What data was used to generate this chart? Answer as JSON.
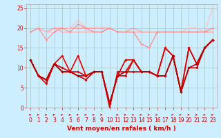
{
  "title": "",
  "xlabel": "Vent moyen/en rafales ( km/h )",
  "bg_color": "#cceeff",
  "grid_color": "#aacccc",
  "ylim": [
    0,
    26
  ],
  "yticks": [
    0,
    5,
    10,
    15,
    20,
    25
  ],
  "series": [
    {
      "data": [
        19,
        20,
        19,
        20,
        19,
        19,
        19,
        19,
        19,
        19,
        20,
        19,
        19,
        19,
        19,
        19,
        19,
        19,
        19,
        19,
        19,
        19,
        19,
        20
      ],
      "color": "#ffaaaa",
      "marker": "D",
      "markersize": 1.5,
      "linewidth": 0.8
    },
    {
      "data": [
        19,
        20,
        19,
        20,
        20,
        20,
        20,
        20,
        20,
        20,
        20,
        19,
        19,
        20,
        19,
        19,
        19,
        19,
        19,
        19,
        19,
        19,
        19,
        19
      ],
      "color": "#ff9999",
      "marker": "D",
      "markersize": 1.5,
      "linewidth": 0.8
    },
    {
      "data": [
        19,
        20,
        19,
        19,
        20,
        20,
        22,
        20,
        19,
        19,
        20,
        19,
        19,
        19,
        16,
        15,
        19,
        19,
        19,
        19,
        20,
        20,
        19,
        25
      ],
      "color": "#ffbbbb",
      "marker": "D",
      "markersize": 1.5,
      "linewidth": 0.8
    },
    {
      "data": [
        19,
        20,
        17,
        19,
        20,
        19,
        21,
        20,
        19,
        19,
        20,
        19,
        19,
        19,
        16,
        15,
        19,
        19,
        19,
        19,
        19,
        19,
        19,
        20
      ],
      "color": "#ff8888",
      "marker": "D",
      "markersize": 1.5,
      "linewidth": 0.8
    },
    {
      "data": [
        12,
        8,
        7,
        11,
        13,
        9,
        13,
        8,
        9,
        9,
        0,
        9,
        9,
        12,
        9,
        9,
        8,
        15,
        13,
        4,
        15,
        11,
        15,
        17
      ],
      "color": "#ee0000",
      "marker": "D",
      "markersize": 2,
      "linewidth": 1.2
    },
    {
      "data": [
        12,
        8,
        6,
        11,
        10,
        9,
        9,
        8,
        9,
        9,
        1,
        8,
        8,
        12,
        9,
        9,
        8,
        15,
        13,
        4,
        15,
        11,
        15,
        17
      ],
      "color": "#dd0000",
      "marker": "D",
      "markersize": 2,
      "linewidth": 1.2
    },
    {
      "data": [
        12,
        8,
        7,
        11,
        9,
        9,
        8,
        8,
        9,
        9,
        1,
        8,
        12,
        12,
        9,
        9,
        8,
        8,
        13,
        4,
        10,
        11,
        15,
        17
      ],
      "color": "#cc0000",
      "marker": "D",
      "markersize": 2,
      "linewidth": 1.2
    },
    {
      "data": [
        12,
        8,
        7,
        11,
        9,
        9,
        8,
        7,
        9,
        9,
        1,
        8,
        9,
        9,
        9,
        9,
        8,
        8,
        13,
        4,
        10,
        10,
        15,
        17
      ],
      "color": "#bb0000",
      "marker": "D",
      "markersize": 2,
      "linewidth": 1.2
    }
  ],
  "tick_fontsize": 5.5,
  "xlabel_fontsize": 6.5,
  "xlabel_color": "#cc0000",
  "arrow_angles": [
    0,
    0,
    0,
    0,
    0,
    0,
    0,
    0,
    0,
    0,
    270,
    0,
    0,
    0,
    315,
    315,
    315,
    270,
    315,
    315,
    0,
    0,
    0,
    0
  ]
}
